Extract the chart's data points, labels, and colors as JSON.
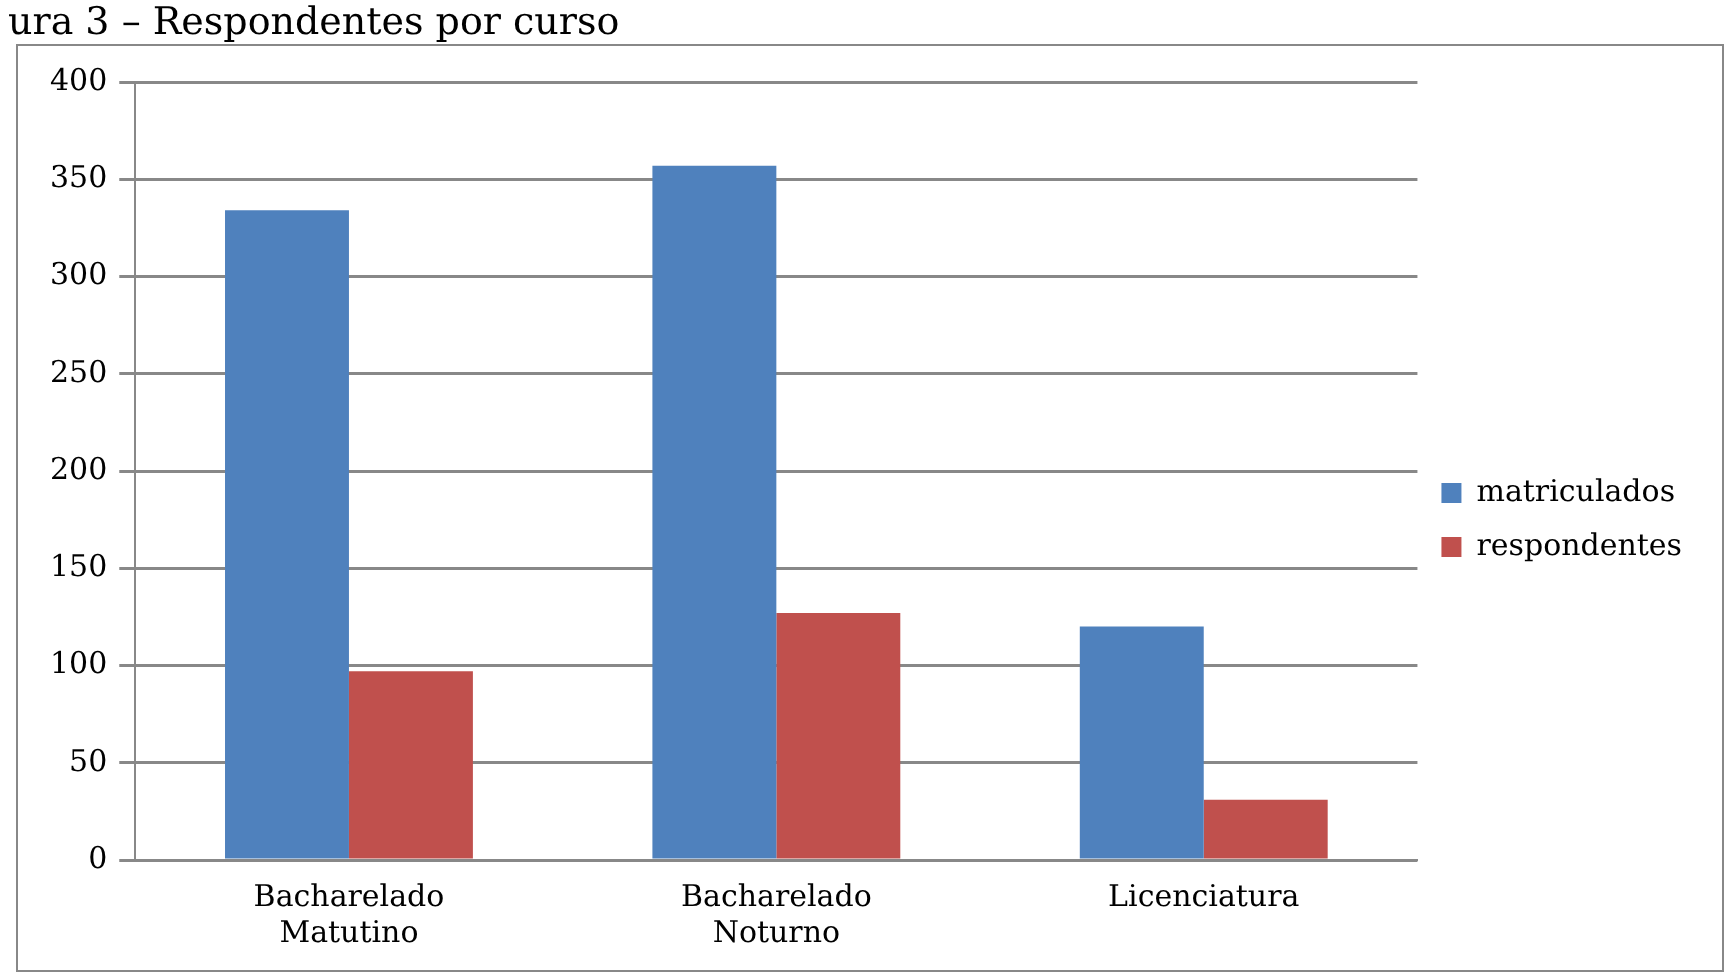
{
  "chart_data": {
    "type": "bar",
    "title": "ura 3 – Respondentes por curso",
    "categories": [
      "Bacharelado Matutino",
      "Bacharelado Noturno",
      "Licenciatura"
    ],
    "series": [
      {
        "name": "matriculados",
        "color": "#4f81bd",
        "values": [
          334,
          357,
          120
        ]
      },
      {
        "name": "respondentes",
        "color": "#c0504d",
        "values": [
          97,
          127,
          31
        ]
      }
    ],
    "ylim": [
      0,
      400
    ],
    "yticks": [
      0,
      50,
      100,
      150,
      200,
      250,
      300,
      350,
      400
    ],
    "grid": "y",
    "legend": "right"
  }
}
